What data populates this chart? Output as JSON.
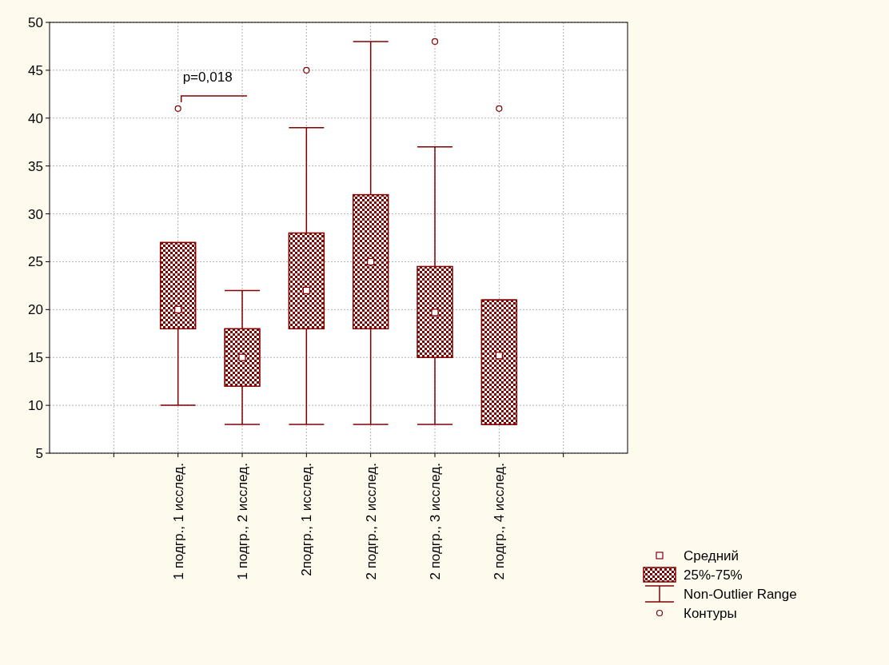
{
  "chart_data": {
    "type": "box",
    "categories": [
      null,
      "1 подгр., 1 исслед.",
      "1 подгр., 2 исслед.",
      "2подгр., 1 исслед.",
      "2 подгр., 2 исслед.",
      "2 подгр., 3 исслед.",
      "2 подгр., 4 исслед.",
      null
    ],
    "color": "#800000",
    "boxes": [
      null,
      {
        "low": 10,
        "q1": 18,
        "median": 20,
        "q3": 27,
        "high": 27,
        "outliers": [
          41
        ]
      },
      {
        "low": 8,
        "q1": 12,
        "median": 15,
        "q3": 18,
        "high": 22
      },
      {
        "low": 8,
        "q1": 18,
        "median": 22,
        "q3": 28,
        "high": 39,
        "outliers": [
          45
        ]
      },
      {
        "low": 8,
        "q1": 18,
        "median": 25,
        "q3": 32,
        "high": 48
      },
      {
        "low": 8,
        "q1": 15,
        "median": 19.7,
        "q3": 24.5,
        "high": 37,
        "outliers": [
          48
        ]
      },
      {
        "low": 8,
        "q1": 8,
        "median": 15.2,
        "q3": 21,
        "high": 21,
        "outliers": [
          41
        ]
      },
      null
    ],
    "ylim": [
      5,
      50
    ],
    "yticks": [
      5,
      10,
      15,
      20,
      25,
      30,
      35,
      40,
      45,
      50
    ],
    "grid": true,
    "annotations": [
      "p=0,018",
      "Средний",
      "25%-75%",
      "Non-Outlier Range",
      "Контуры"
    ]
  }
}
